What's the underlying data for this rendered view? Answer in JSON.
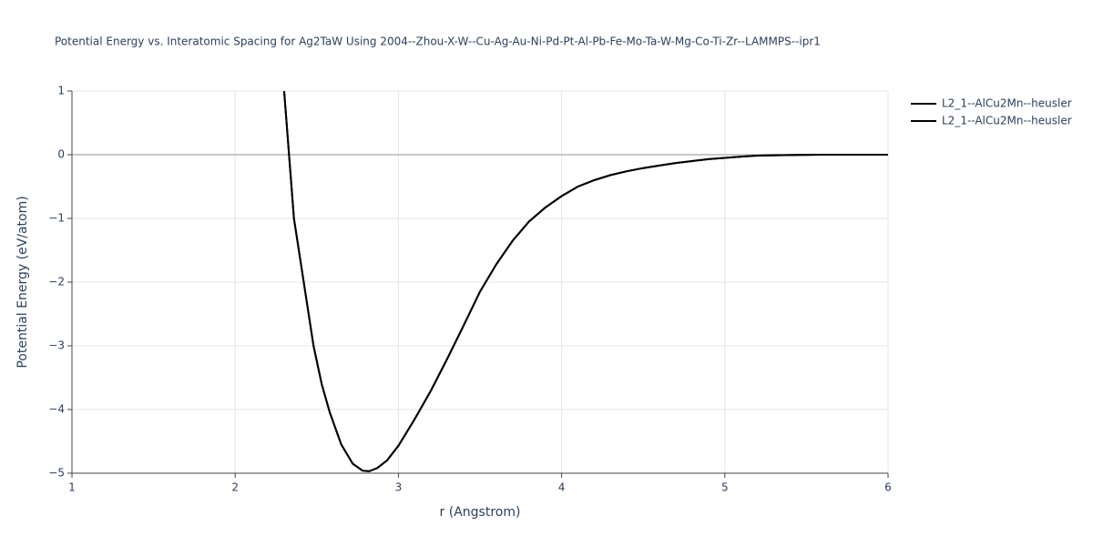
{
  "chart_data": {
    "type": "line",
    "title": "Potential Energy vs. Interatomic Spacing for Ag2TaW Using 2004--Zhou-X-W--Cu-Ag-Au-Ni-Pd-Pt-Al-Pb-Fe-Mo-Ta-W-Mg-Co-Ti-Zr--LAMMPS--ipr1",
    "x_label": "r (Angstrom)",
    "y_label": "Potential Energy (eV/atom)",
    "x": [
      2.3,
      2.33,
      2.36,
      2.42,
      2.48,
      2.53,
      2.58,
      2.65,
      2.72,
      2.78,
      2.82,
      2.87,
      2.93,
      3.0,
      3.1,
      3.2,
      3.3,
      3.4,
      3.5,
      3.6,
      3.7,
      3.8,
      3.9,
      4.0,
      4.1,
      4.2,
      4.3,
      4.4,
      4.5,
      4.6,
      4.7,
      4.8,
      4.9,
      5.0,
      5.1,
      5.2,
      5.4,
      5.6,
      6.0
    ],
    "series": [
      {
        "name": "L2_1--AlCu2Mn--heusler",
        "color": "#000000",
        "values": [
          1.0,
          0.0,
          -1.0,
          -2.0,
          -3.0,
          -3.6,
          -4.05,
          -4.55,
          -4.85,
          -4.96,
          -4.97,
          -4.92,
          -4.8,
          -4.57,
          -4.15,
          -3.7,
          -3.2,
          -2.68,
          -2.15,
          -1.72,
          -1.35,
          -1.05,
          -0.83,
          -0.65,
          -0.5,
          -0.4,
          -0.32,
          -0.26,
          -0.21,
          -0.17,
          -0.13,
          -0.1,
          -0.07,
          -0.05,
          -0.03,
          -0.015,
          -0.005,
          0,
          0
        ]
      },
      {
        "name": "L2_1--AlCu2Mn--heusler",
        "color": "#000000",
        "values": [
          1.0,
          0.0,
          -1.0,
          -2.0,
          -3.0,
          -3.6,
          -4.05,
          -4.55,
          -4.85,
          -4.96,
          -4.97,
          -4.92,
          -4.8,
          -4.57,
          -4.15,
          -3.7,
          -3.2,
          -2.68,
          -2.15,
          -1.72,
          -1.35,
          -1.05,
          -0.83,
          -0.65,
          -0.5,
          -0.4,
          -0.32,
          -0.26,
          -0.21,
          -0.17,
          -0.13,
          -0.1,
          -0.07,
          -0.05,
          -0.03,
          -0.015,
          -0.005,
          0,
          0
        ]
      }
    ],
    "xlim": [
      1,
      6
    ],
    "xticks": [
      1,
      2,
      3,
      4,
      5,
      6
    ],
    "ylim": [
      -5,
      1
    ],
    "yticks": [
      {
        "value": -5,
        "label": "−5"
      },
      {
        "value": -4,
        "label": "−4"
      },
      {
        "value": -3,
        "label": "−3"
      },
      {
        "value": -2,
        "label": "−2"
      },
      {
        "value": -1,
        "label": "−1"
      },
      0,
      1
    ],
    "grid": true
  }
}
